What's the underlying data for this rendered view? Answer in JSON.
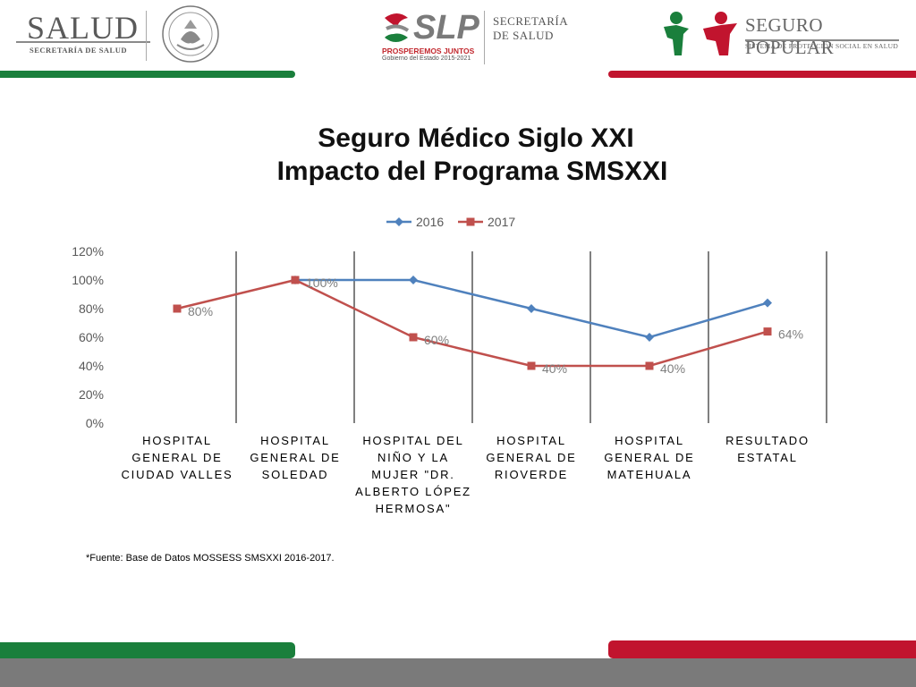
{
  "header": {
    "salud_word": "SALUD",
    "salud_sub": "SECRETARÍA DE SALUD",
    "slp_word": "SLP",
    "slp_motto": "PROSPEREMOS JUNTOS",
    "slp_gob": "Gobierno del Estado 2015-2021",
    "secretaria_line1": "SECRETARÍA",
    "secretaria_line2": "DE SALUD",
    "seguro_popular_word": "SEGURO POPULAR",
    "seguro_popular_sub": "SISTEMA DE PROTECCIÓN SOCIAL EN SALUD"
  },
  "colors": {
    "green": "#1a7f3c",
    "red": "#c1142e",
    "series_2016": "#4f81bd",
    "series_2017": "#c0504d"
  },
  "source_note": "*Fuente: Base de Datos MOSSESS SMSXXI 2016-2017.",
  "chart_data": {
    "type": "line",
    "title": "Seguro Médico Siglo XXI",
    "subtitle": "Impacto del Programa SMSXXI",
    "categories": [
      [
        "HOSPITAL",
        "GENERAL DE",
        "CIUDAD VALLES"
      ],
      [
        "HOSPITAL",
        "GENERAL DE",
        "SOLEDAD"
      ],
      [
        "HOSPITAL DEL",
        "NIÑO Y LA",
        "MUJER \"DR.",
        "ALBERTO LÓPEZ",
        "HERMOSA\""
      ],
      [
        "HOSPITAL",
        "GENERAL DE",
        "RIOVERDE"
      ],
      [
        "HOSPITAL",
        "GENERAL DE",
        "MATEHUALA"
      ],
      [
        "RESULTADO",
        "ESTATAL"
      ]
    ],
    "series": [
      {
        "name": "2016",
        "values": [
          null,
          100,
          100,
          80,
          60,
          84
        ],
        "data_labels": []
      },
      {
        "name": "2017",
        "values": [
          80,
          100,
          60,
          40,
          40,
          64
        ],
        "data_labels": [
          "80%",
          "100%",
          "60%",
          "40%",
          "40%",
          "64%"
        ]
      }
    ],
    "y_ticks": [
      "0%",
      "20%",
      "40%",
      "60%",
      "80%",
      "100%",
      "120%"
    ],
    "ylim": [
      0,
      120
    ],
    "legend_position": "top",
    "vertical_category_dividers": true
  }
}
